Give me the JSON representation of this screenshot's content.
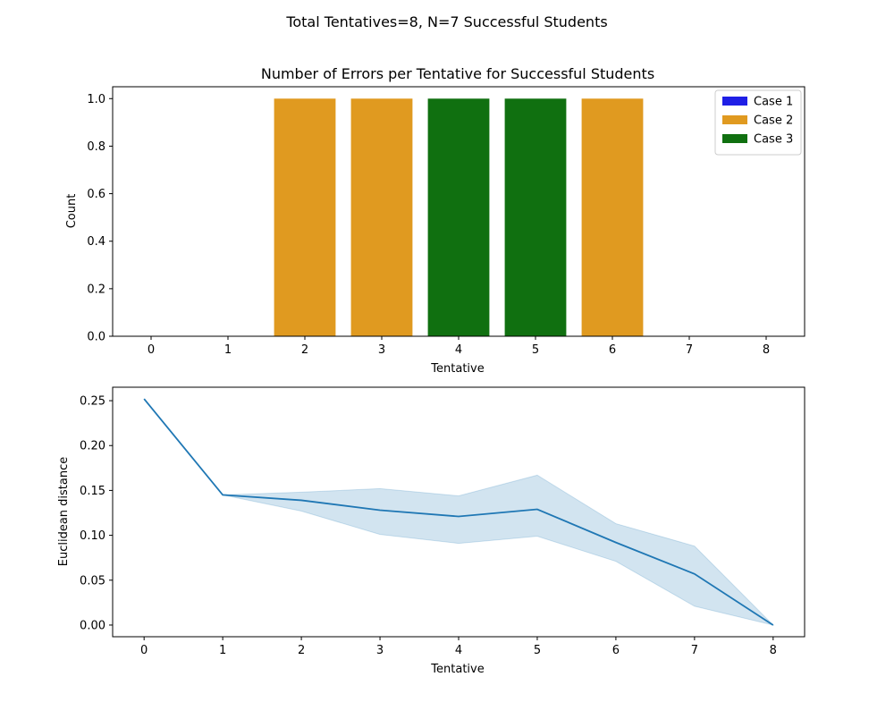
{
  "suptitle": "Total Tentatives=8, N=7 Successful Students",
  "chart_data": [
    {
      "type": "bar",
      "title": "Number of Errors per Tentative for Successful Students",
      "xlabel": "Tentative",
      "ylabel": "Count",
      "categories": [
        "0",
        "1",
        "2",
        "3",
        "4",
        "5",
        "6",
        "7",
        "8"
      ],
      "ylim": [
        0,
        1.05
      ],
      "yticks": [
        "0.0",
        "0.2",
        "0.4",
        "0.6",
        "0.8",
        "1.0"
      ],
      "series": [
        {
          "name": "Case 1",
          "color": "#1f1fe6",
          "values": [
            0,
            0,
            0,
            0,
            0,
            0,
            0,
            0,
            0
          ]
        },
        {
          "name": "Case 2",
          "color": "#e09a20",
          "values": [
            0,
            0,
            1,
            1,
            0,
            0,
            1,
            0,
            0
          ]
        },
        {
          "name": "Case 3",
          "color": "#107010",
          "values": [
            0,
            0,
            0,
            0,
            1,
            1,
            0,
            0,
            0
          ]
        }
      ],
      "legend": "top-right",
      "grid": false
    },
    {
      "type": "line",
      "xlabel": "Tentative",
      "ylabel": "Euclidean distance",
      "x": [
        0,
        1,
        2,
        3,
        4,
        5,
        6,
        7,
        8
      ],
      "xlim": [
        -0.4,
        8.4
      ],
      "ylim": [
        -0.013,
        0.265
      ],
      "yticks": [
        "0.00",
        "0.05",
        "0.10",
        "0.15",
        "0.20",
        "0.25"
      ],
      "series": [
        {
          "color": "#1f77b4",
          "values": [
            0.252,
            0.145,
            0.139,
            0.128,
            0.121,
            0.129,
            0.092,
            0.057,
            0.0
          ],
          "ci_lower": [
            0.252,
            0.145,
            0.127,
            0.101,
            0.091,
            0.099,
            0.071,
            0.021,
            0.0
          ],
          "ci_upper": [
            0.252,
            0.145,
            0.148,
            0.152,
            0.144,
            0.167,
            0.113,
            0.088,
            0.0
          ]
        }
      ],
      "grid": false
    }
  ]
}
